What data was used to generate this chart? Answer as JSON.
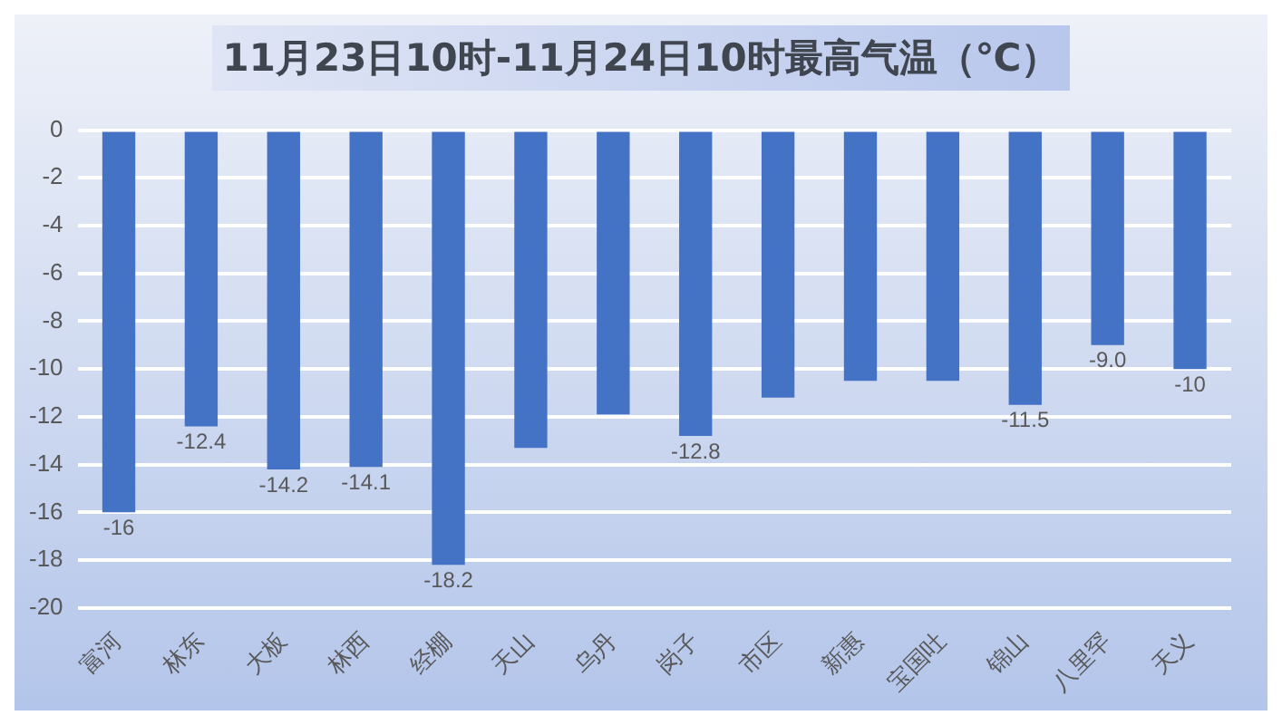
{
  "chart_data": {
    "type": "bar",
    "title": "11月23日10时-11月24日10时最高气温（℃）",
    "categories": [
      "富河",
      "林东",
      "大板",
      "林西",
      "经棚",
      "天山",
      "乌丹",
      "岗子",
      "市区",
      "新惠",
      "宝国吐",
      "锦山",
      "八里罕",
      "天义"
    ],
    "values": [
      -16,
      -12.4,
      -14.2,
      -14.1,
      -18.2,
      -13.3,
      -11.9,
      -12.8,
      -11.2,
      -10.5,
      -10.5,
      -11.5,
      -9.0,
      -10
    ],
    "value_labels": [
      "-16",
      "-12.4",
      "-14.2",
      "-14.1",
      "-18.2",
      null,
      null,
      "-12.8",
      null,
      null,
      null,
      "-11.5",
      "-9.0",
      "-10"
    ],
    "color": "#4472c4",
    "ylim": [
      -20,
      0
    ],
    "yticks": [
      0,
      -2,
      -4,
      -6,
      -8,
      -10,
      -12,
      -14,
      -16,
      -18,
      -20
    ],
    "grid": "y",
    "legend": false
  }
}
